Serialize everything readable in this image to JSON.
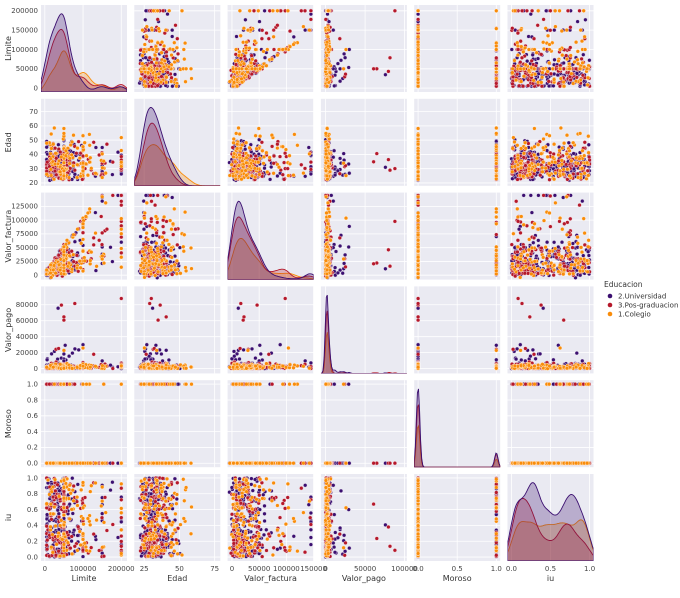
{
  "chart_data": {
    "type": "scatter",
    "variant": "pairplot",
    "grid": true,
    "background": "#EAEAF2",
    "diag_kind": "kde",
    "variables": [
      {
        "key": "Limite",
        "label": "Limite",
        "lim": [
          -10000,
          215000
        ],
        "ticks": [
          {
            "v": 0,
            "t": "0"
          },
          {
            "v": 100000,
            "t": "100000"
          },
          {
            "v": 200000,
            "t": "200000"
          }
        ]
      },
      {
        "key": "Edad",
        "label": "Edad",
        "lim": [
          18,
          79
        ],
        "ticks": [
          {
            "v": 20,
            "t": "20"
          },
          {
            "v": 25,
            "t": "25"
          },
          {
            "v": 30,
            "t": "30"
          },
          {
            "v": 40,
            "t": "40"
          },
          {
            "v": 50,
            "t": "50"
          },
          {
            "v": 60,
            "t": "60"
          },
          {
            "v": 70,
            "t": "70"
          },
          {
            "v": 75,
            "t": "75"
          }
        ]
      },
      {
        "key": "Valor_factura",
        "label": "Valor_factura",
        "lim": [
          -8000,
          150000
        ],
        "ticks": [
          {
            "v": 0,
            "t": "0"
          },
          {
            "v": 25000,
            "t": "25000"
          },
          {
            "v": 50000,
            "t": "50000"
          },
          {
            "v": 75000,
            "t": "75000"
          },
          {
            "v": 100000,
            "t": "100000"
          },
          {
            "v": 125000,
            "t": "125000"
          },
          {
            "v": 150000,
            "t": "150000"
          }
        ]
      },
      {
        "key": "Valor_pago",
        "label": "Valor_pago",
        "lim": [
          -6000,
          103000
        ],
        "ticks": [
          {
            "v": 0,
            "t": "0"
          },
          {
            "v": 20000,
            "t": "20000"
          },
          {
            "v": 40000,
            "t": "40000"
          },
          {
            "v": 50000,
            "t": "50000"
          },
          {
            "v": 60000,
            "t": "60000"
          },
          {
            "v": 80000,
            "t": "80000"
          },
          {
            "v": 100000,
            "t": "100000"
          }
        ]
      },
      {
        "key": "Moroso",
        "label": "Moroso",
        "lim": [
          -0.05,
          1.05
        ],
        "ticks": [
          {
            "v": 0,
            "t": "0.0"
          },
          {
            "v": 0.2,
            "t": "0.2"
          },
          {
            "v": 0.4,
            "t": "0.4"
          },
          {
            "v": 0.5,
            "t": "0.5"
          },
          {
            "v": 0.6,
            "t": "0.6"
          },
          {
            "v": 0.8,
            "t": "0.8"
          },
          {
            "v": 1,
            "t": "1.0"
          }
        ]
      },
      {
        "key": "iu",
        "label": "iu",
        "lim": [
          -0.05,
          1.05
        ],
        "ticks": [
          {
            "v": 0,
            "t": "0.0"
          },
          {
            "v": 0.2,
            "t": "0.2"
          },
          {
            "v": 0.4,
            "t": "0.4"
          },
          {
            "v": 0.5,
            "t": "0.5"
          },
          {
            "v": 0.6,
            "t": "0.6"
          },
          {
            "v": 0.8,
            "t": "0.8"
          },
          {
            "v": 1,
            "t": "1.0"
          }
        ]
      }
    ],
    "row_tick_values": {
      "Limite": [
        0,
        50000,
        100000,
        150000,
        200000
      ],
      "Edad": [
        20,
        30,
        40,
        50,
        60,
        70
      ],
      "Valor_factura": [
        0,
        25000,
        50000,
        75000,
        100000,
        125000
      ],
      "Valor_pago": [
        0,
        20000,
        40000,
        60000,
        80000
      ],
      "Moroso": [
        0,
        0.2,
        0.4,
        0.6,
        0.8,
        1
      ],
      "iu": [
        0,
        0.2,
        0.4,
        0.6,
        0.8,
        1
      ]
    },
    "col_tick_values": {
      "Limite": [
        0,
        100000,
        200000
      ],
      "Edad": [
        25,
        50,
        75
      ],
      "Valor_factura": [
        0,
        50000,
        100000,
        150000
      ],
      "Valor_pago": [
        0,
        50000,
        100000
      ],
      "Moroso": [
        0,
        0.5,
        1
      ],
      "iu": [
        0,
        0.5,
        1
      ]
    },
    "legend": {
      "title": "Educacion",
      "placement": "right",
      "entries": [
        {
          "label": "2.Universidad",
          "color": "#3B0F70"
        },
        {
          "label": "3.Pos-graduacion",
          "color": "#B5182B"
        },
        {
          "label": "1.Colegio",
          "color": "#F98C0A"
        }
      ]
    },
    "series": [
      {
        "name": "2.Universidad",
        "color": "#3B0F70",
        "n": 230,
        "kde_peaks": {
          "Limite": 20000,
          "Edad": 33,
          "Valor_factura": 18000,
          "Valor_pago": 2000,
          "Moroso": 0,
          "iu": 0.75
        }
      },
      {
        "name": "3.Pos-graduacion",
        "color": "#B5182B",
        "n": 160,
        "kde_peaks": {
          "Limite": 40000,
          "Edad": 32,
          "Valor_factura": 15000,
          "Valor_pago": 2000,
          "Moroso": 0,
          "iu": 0.1
        }
      },
      {
        "name": "1.Colegio",
        "color": "#F98C0A",
        "n": 120,
        "kde_peaks": {
          "Limite": 20000,
          "Edad": 45,
          "Valor_factura": 14000,
          "Valor_pago": 1500,
          "Moroso": 0,
          "iu": 0.6
        }
      }
    ]
  }
}
